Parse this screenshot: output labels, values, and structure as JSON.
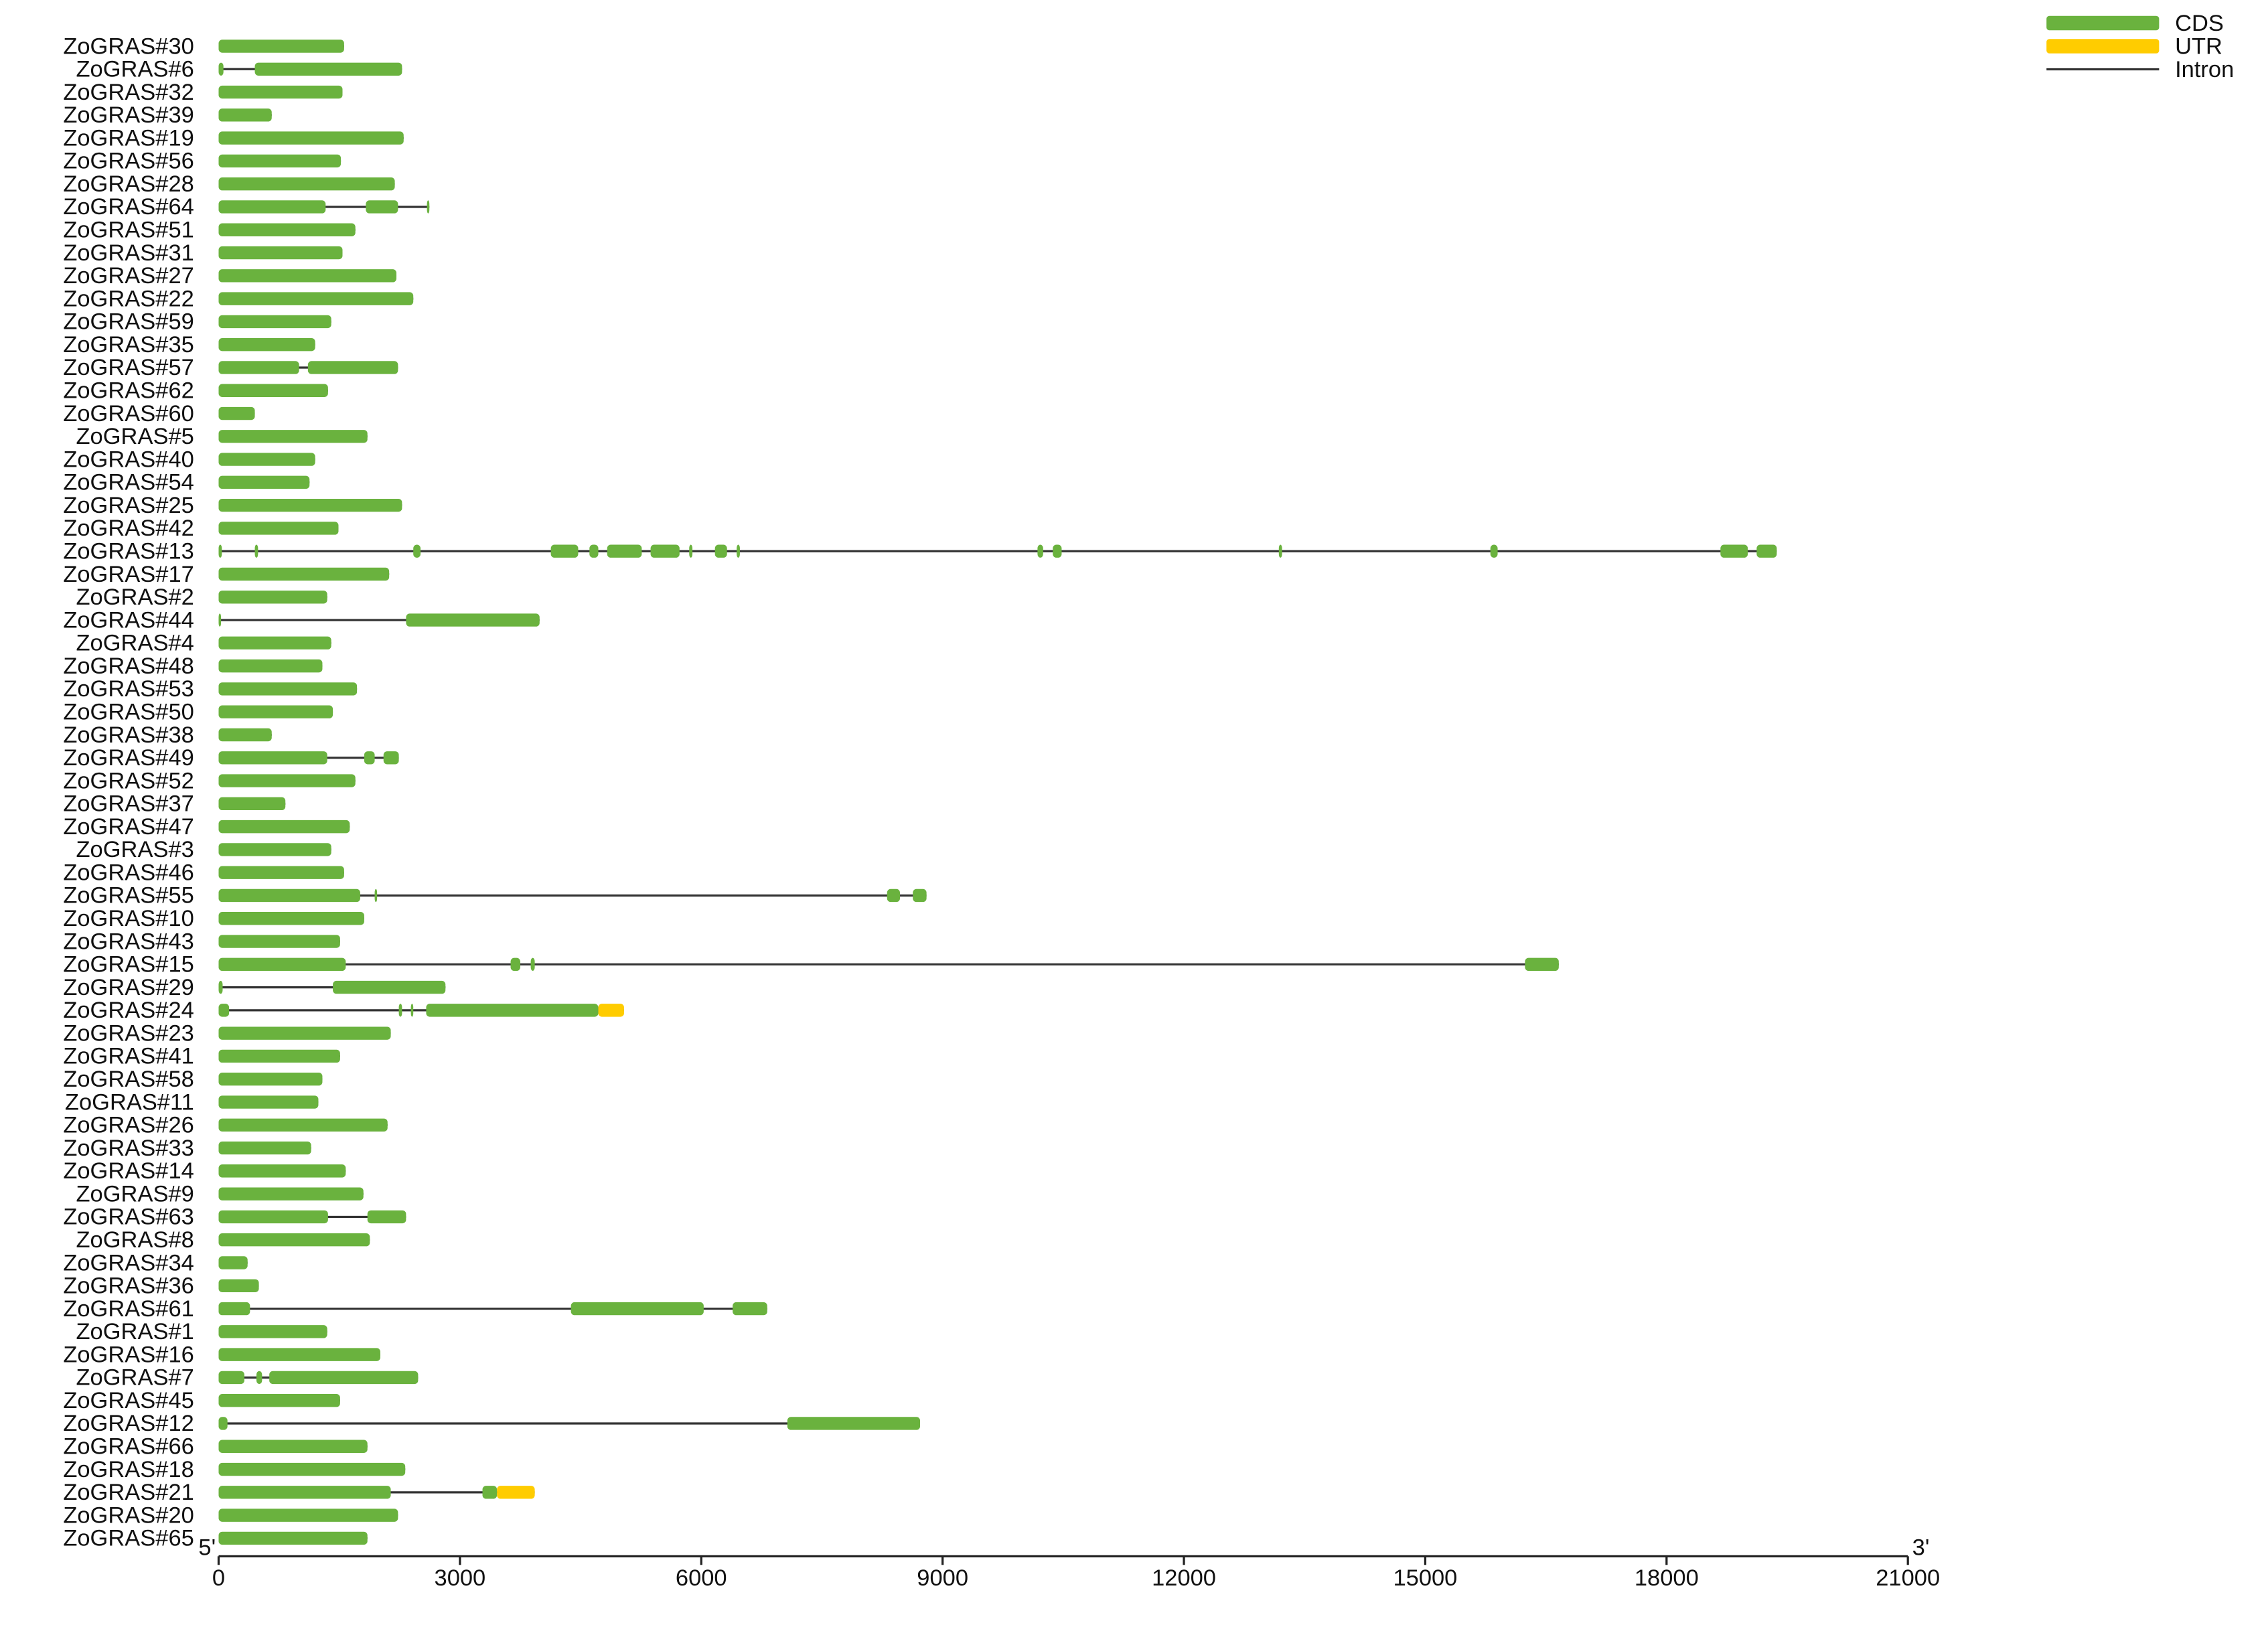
{
  "chart_data": {
    "type": "gene-structure",
    "xlim": [
      0,
      21000
    ],
    "xticks": [
      0,
      3000,
      6000,
      9000,
      12000,
      15000,
      18000,
      21000
    ],
    "end_labels": [
      "5'",
      "3'"
    ],
    "legend": [
      {
        "label": "CDS",
        "color": "#6ab23e"
      },
      {
        "label": "UTR",
        "color": "#ffcc00"
      },
      {
        "label": "Intron",
        "color": "#333333"
      }
    ],
    "genes": [
      {
        "name": "ZoGRAS#30",
        "cds": [
          [
            0,
            1560
          ]
        ]
      },
      {
        "name": "ZoGRAS#6",
        "cds": [
          [
            0,
            60
          ],
          [
            450,
            2280
          ]
        ]
      },
      {
        "name": "ZoGRAS#32",
        "cds": [
          [
            0,
            1540
          ]
        ]
      },
      {
        "name": "ZoGRAS#39",
        "cds": [
          [
            0,
            660
          ]
        ]
      },
      {
        "name": "ZoGRAS#19",
        "cds": [
          [
            0,
            2300
          ]
        ]
      },
      {
        "name": "ZoGRAS#56",
        "cds": [
          [
            0,
            1520
          ]
        ]
      },
      {
        "name": "ZoGRAS#28",
        "cds": [
          [
            0,
            2190
          ]
        ]
      },
      {
        "name": "ZoGRAS#64",
        "cds": [
          [
            0,
            1330
          ],
          [
            1830,
            2230
          ],
          [
            2590,
            2620
          ]
        ]
      },
      {
        "name": "ZoGRAS#51",
        "cds": [
          [
            0,
            1700
          ]
        ]
      },
      {
        "name": "ZoGRAS#31",
        "cds": [
          [
            0,
            1540
          ]
        ]
      },
      {
        "name": "ZoGRAS#27",
        "cds": [
          [
            0,
            2210
          ]
        ]
      },
      {
        "name": "ZoGRAS#22",
        "cds": [
          [
            0,
            2420
          ]
        ]
      },
      {
        "name": "ZoGRAS#59",
        "cds": [
          [
            0,
            1400
          ]
        ]
      },
      {
        "name": "ZoGRAS#35",
        "cds": [
          [
            0,
            1200
          ]
        ]
      },
      {
        "name": "ZoGRAS#57",
        "cds": [
          [
            0,
            1000
          ],
          [
            1110,
            2230
          ]
        ]
      },
      {
        "name": "ZoGRAS#62",
        "cds": [
          [
            0,
            1360
          ]
        ]
      },
      {
        "name": "ZoGRAS#60",
        "cds": [
          [
            0,
            450
          ]
        ]
      },
      {
        "name": "ZoGRAS#5",
        "cds": [
          [
            0,
            1850
          ]
        ]
      },
      {
        "name": "ZoGRAS#40",
        "cds": [
          [
            0,
            1200
          ]
        ]
      },
      {
        "name": "ZoGRAS#54",
        "cds": [
          [
            0,
            1130
          ]
        ]
      },
      {
        "name": "ZoGRAS#25",
        "cds": [
          [
            0,
            2280
          ]
        ]
      },
      {
        "name": "ZoGRAS#42",
        "cds": [
          [
            0,
            1490
          ]
        ]
      },
      {
        "name": "ZoGRAS#13",
        "cds": [
          [
            0,
            40
          ],
          [
            450,
            490
          ],
          [
            2420,
            2510
          ],
          [
            4130,
            4470
          ],
          [
            4610,
            4720
          ],
          [
            4830,
            5260
          ],
          [
            5370,
            5730
          ],
          [
            5850,
            5890
          ],
          [
            6170,
            6320
          ],
          [
            6440,
            6480
          ],
          [
            10180,
            10250
          ],
          [
            10370,
            10480
          ],
          [
            13180,
            13220
          ],
          [
            15810,
            15900
          ],
          [
            18670,
            19010
          ],
          [
            19120,
            19370
          ]
        ]
      },
      {
        "name": "ZoGRAS#17",
        "cds": [
          [
            0,
            2120
          ]
        ]
      },
      {
        "name": "ZoGRAS#2",
        "cds": [
          [
            0,
            1350
          ]
        ]
      },
      {
        "name": "ZoGRAS#44",
        "cds": [
          [
            0,
            30
          ],
          [
            2330,
            3990
          ]
        ]
      },
      {
        "name": "ZoGRAS#4",
        "cds": [
          [
            0,
            1400
          ]
        ]
      },
      {
        "name": "ZoGRAS#48",
        "cds": [
          [
            0,
            1290
          ]
        ]
      },
      {
        "name": "ZoGRAS#53",
        "cds": [
          [
            0,
            1720
          ]
        ]
      },
      {
        "name": "ZoGRAS#50",
        "cds": [
          [
            0,
            1420
          ]
        ]
      },
      {
        "name": "ZoGRAS#38",
        "cds": [
          [
            0,
            660
          ]
        ]
      },
      {
        "name": "ZoGRAS#49",
        "cds": [
          [
            0,
            1350
          ],
          [
            1810,
            1940
          ],
          [
            2050,
            2240
          ]
        ]
      },
      {
        "name": "ZoGRAS#52",
        "cds": [
          [
            0,
            1700
          ]
        ]
      },
      {
        "name": "ZoGRAS#37",
        "cds": [
          [
            0,
            830
          ]
        ]
      },
      {
        "name": "ZoGRAS#47",
        "cds": [
          [
            0,
            1630
          ]
        ]
      },
      {
        "name": "ZoGRAS#3",
        "cds": [
          [
            0,
            1400
          ]
        ]
      },
      {
        "name": "ZoGRAS#46",
        "cds": [
          [
            0,
            1560
          ]
        ]
      },
      {
        "name": "ZoGRAS#55",
        "cds": [
          [
            0,
            1760
          ],
          [
            1940,
            1970
          ],
          [
            8310,
            8470
          ],
          [
            8630,
            8800
          ]
        ]
      },
      {
        "name": "ZoGRAS#10",
        "cds": [
          [
            0,
            1810
          ]
        ]
      },
      {
        "name": "ZoGRAS#43",
        "cds": [
          [
            0,
            1510
          ]
        ]
      },
      {
        "name": "ZoGRAS#15",
        "cds": [
          [
            0,
            1580
          ],
          [
            3630,
            3750
          ],
          [
            3880,
            3930
          ],
          [
            16240,
            16660
          ]
        ]
      },
      {
        "name": "ZoGRAS#29",
        "cds": [
          [
            0,
            50
          ],
          [
            1420,
            2820
          ]
        ]
      },
      {
        "name": "ZoGRAS#24",
        "cds": [
          [
            0,
            130
          ],
          [
            2240,
            2280
          ],
          [
            2390,
            2420
          ],
          [
            2580,
            4720
          ]
        ],
        "utr": [
          [
            4720,
            5040
          ]
        ]
      },
      {
        "name": "ZoGRAS#23",
        "cds": [
          [
            0,
            2140
          ]
        ]
      },
      {
        "name": "ZoGRAS#41",
        "cds": [
          [
            0,
            1510
          ]
        ]
      },
      {
        "name": "ZoGRAS#58",
        "cds": [
          [
            0,
            1290
          ]
        ]
      },
      {
        "name": "ZoGRAS#11",
        "cds": [
          [
            0,
            1240
          ]
        ]
      },
      {
        "name": "ZoGRAS#26",
        "cds": [
          [
            0,
            2100
          ]
        ]
      },
      {
        "name": "ZoGRAS#33",
        "cds": [
          [
            0,
            1150
          ]
        ]
      },
      {
        "name": "ZoGRAS#14",
        "cds": [
          [
            0,
            1580
          ]
        ]
      },
      {
        "name": "ZoGRAS#9",
        "cds": [
          [
            0,
            1800
          ]
        ]
      },
      {
        "name": "ZoGRAS#63",
        "cds": [
          [
            0,
            1360
          ],
          [
            1850,
            2330
          ]
        ]
      },
      {
        "name": "ZoGRAS#8",
        "cds": [
          [
            0,
            1880
          ]
        ]
      },
      {
        "name": "ZoGRAS#34",
        "cds": [
          [
            0,
            360
          ]
        ]
      },
      {
        "name": "ZoGRAS#36",
        "cds": [
          [
            0,
            500
          ]
        ]
      },
      {
        "name": "ZoGRAS#61",
        "cds": [
          [
            0,
            390
          ],
          [
            4380,
            6030
          ],
          [
            6390,
            6820
          ]
        ]
      },
      {
        "name": "ZoGRAS#1",
        "cds": [
          [
            0,
            1350
          ]
        ]
      },
      {
        "name": "ZoGRAS#16",
        "cds": [
          [
            0,
            2010
          ]
        ]
      },
      {
        "name": "ZoGRAS#7",
        "cds": [
          [
            0,
            320
          ],
          [
            470,
            540
          ],
          [
            630,
            2480
          ]
        ]
      },
      {
        "name": "ZoGRAS#45",
        "cds": [
          [
            0,
            1510
          ]
        ]
      },
      {
        "name": "ZoGRAS#12",
        "cds": [
          [
            0,
            110
          ],
          [
            7070,
            8720
          ]
        ]
      },
      {
        "name": "ZoGRAS#66",
        "cds": [
          [
            0,
            1850
          ]
        ]
      },
      {
        "name": "ZoGRAS#18",
        "cds": [
          [
            0,
            2320
          ]
        ]
      },
      {
        "name": "ZoGRAS#21",
        "cds": [
          [
            0,
            2140
          ],
          [
            3280,
            3460
          ]
        ],
        "utr": [
          [
            3460,
            3930
          ]
        ]
      },
      {
        "name": "ZoGRAS#20",
        "cds": [
          [
            0,
            2230
          ]
        ]
      },
      {
        "name": "ZoGRAS#65",
        "cds": [
          [
            0,
            1850
          ]
        ]
      }
    ]
  }
}
